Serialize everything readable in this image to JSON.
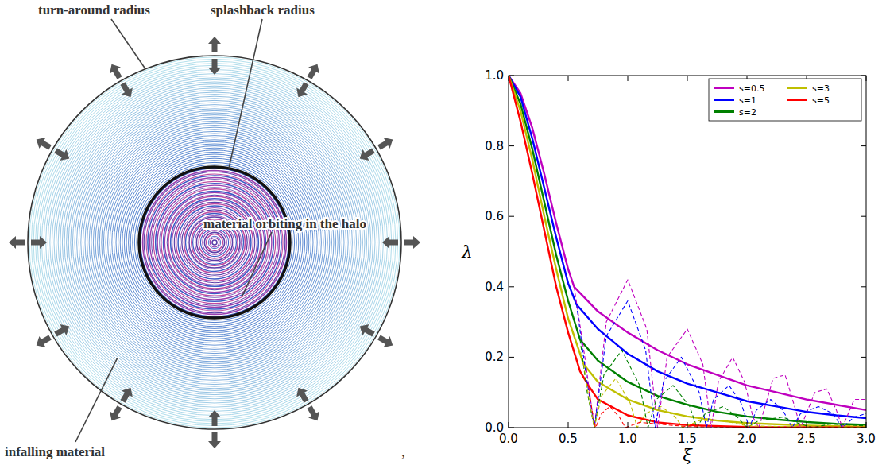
{
  "diagram": {
    "labels": [
      "turn-around radius",
      "splashback radius",
      "material orbiting in the halo",
      "infalling material"
    ],
    "separator": ","
  },
  "chart_data": {
    "type": "line",
    "x_label": "ξ",
    "y_label": "λ",
    "xlim": [
      0,
      3
    ],
    "ylim": [
      0,
      1
    ],
    "xticks": [
      {
        "value": 0,
        "label": "0.0"
      },
      {
        "value": 0.5,
        "label": "0.5"
      },
      {
        "value": 1,
        "label": "1.0"
      },
      {
        "value": 1.5,
        "label": "1.5"
      },
      {
        "value": 2,
        "label": "2.0"
      },
      {
        "value": 2.5,
        "label": "2.5"
      },
      {
        "value": 3,
        "label": "3.0"
      }
    ],
    "yticks": [
      {
        "value": 0,
        "label": "0.0"
      },
      {
        "value": 0.2,
        "label": "0.2"
      },
      {
        "value": 0.4,
        "label": "0.4"
      },
      {
        "value": 0.6,
        "label": "0.6"
      },
      {
        "value": 0.8,
        "label": "0.8"
      },
      {
        "value": 1,
        "label": "1.0"
      }
    ],
    "grid": false,
    "legend": "upper right",
    "series": [
      {
        "name": "s=0.5",
        "color": "#bf00bf",
        "line_style": "solid",
        "x": [
          0,
          0.1,
          0.2,
          0.3,
          0.4,
          0.5,
          0.55,
          0.75,
          1.0,
          1.25,
          1.5,
          1.75,
          2.0,
          2.25,
          2.5,
          2.75,
          3.0
        ],
        "values": [
          1.0,
          0.95,
          0.85,
          0.72,
          0.58,
          0.45,
          0.4,
          0.33,
          0.27,
          0.22,
          0.18,
          0.15,
          0.12,
          0.1,
          0.08,
          0.065,
          0.05
        ]
      },
      {
        "name": "s=1",
        "color": "#0000ff",
        "line_style": "solid",
        "x": [
          0,
          0.1,
          0.2,
          0.3,
          0.4,
          0.5,
          0.57,
          0.75,
          1.0,
          1.25,
          1.5,
          1.75,
          2.0,
          2.25,
          2.5,
          2.75,
          3.0
        ],
        "values": [
          1.0,
          0.94,
          0.82,
          0.68,
          0.54,
          0.41,
          0.35,
          0.28,
          0.21,
          0.16,
          0.125,
          0.1,
          0.075,
          0.06,
          0.045,
          0.035,
          0.027
        ]
      },
      {
        "name": "s=2",
        "color": "#008000",
        "line_style": "solid",
        "x": [
          0,
          0.1,
          0.2,
          0.3,
          0.4,
          0.5,
          0.6,
          0.75,
          1.0,
          1.25,
          1.5,
          1.75,
          2.0,
          2.25,
          2.5,
          2.75,
          3.0
        ],
        "values": [
          1.0,
          0.92,
          0.79,
          0.64,
          0.49,
          0.36,
          0.25,
          0.19,
          0.13,
          0.09,
          0.065,
          0.045,
          0.032,
          0.023,
          0.016,
          0.011,
          0.008
        ]
      },
      {
        "name": "s=3",
        "color": "#bfbf00",
        "line_style": "solid",
        "x": [
          0,
          0.1,
          0.2,
          0.3,
          0.4,
          0.5,
          0.63,
          0.75,
          1.0,
          1.25,
          1.5,
          1.75,
          2.0,
          2.5,
          3.0
        ],
        "values": [
          1.0,
          0.9,
          0.76,
          0.6,
          0.45,
          0.31,
          0.18,
          0.13,
          0.08,
          0.05,
          0.032,
          0.02,
          0.013,
          0.006,
          0.003
        ]
      },
      {
        "name": "s=5",
        "color": "#ff0000",
        "line_style": "solid",
        "x": [
          0,
          0.1,
          0.2,
          0.3,
          0.4,
          0.5,
          0.6,
          0.67,
          0.75,
          1.0,
          1.25,
          1.5,
          2.0,
          3.0
        ],
        "values": [
          1.0,
          0.87,
          0.72,
          0.56,
          0.4,
          0.27,
          0.16,
          0.12,
          0.08,
          0.035,
          0.015,
          0.007,
          0.002,
          0.0
        ]
      },
      {
        "color": "#bf00bf",
        "line_style": "dashed",
        "x": [
          0.55,
          0.64,
          0.72,
          0.82,
          1.0,
          1.16,
          1.25,
          1.33,
          1.5,
          1.63,
          1.7,
          1.76,
          1.88,
          1.98,
          2.05,
          2.1,
          2.22,
          2.32,
          2.4,
          2.45,
          2.57,
          2.67,
          2.75,
          2.8,
          2.9,
          3.0
        ],
        "values": [
          0.4,
          0.2,
          0,
          0.3,
          0.42,
          0.28,
          0,
          0.2,
          0.28,
          0.18,
          0,
          0.13,
          0.2,
          0.13,
          0.03,
          0,
          0.14,
          0.15,
          0.06,
          0,
          0.1,
          0.11,
          0.05,
          0,
          0.08,
          0.08
        ]
      },
      {
        "color": "#0000ff",
        "line_style": "dashed",
        "x": [
          0.57,
          0.65,
          0.72,
          0.82,
          1.0,
          1.15,
          1.23,
          1.3,
          1.45,
          1.6,
          1.66,
          1.72,
          1.85,
          1.95,
          2.02,
          2.08,
          2.2,
          2.3,
          2.38,
          2.45,
          2.6,
          2.72,
          2.8,
          2.9,
          3.0
        ],
        "values": [
          0.35,
          0.15,
          0,
          0.26,
          0.36,
          0.22,
          0,
          0.13,
          0.2,
          0.1,
          0,
          0.08,
          0.12,
          0.07,
          0,
          0.05,
          0.08,
          0.05,
          0,
          0.04,
          0.06,
          0.04,
          0,
          0.03,
          0.04
        ]
      },
      {
        "color": "#008000",
        "line_style": "dashed",
        "x": [
          0.6,
          0.66,
          0.72,
          0.8,
          0.95,
          1.1,
          1.17,
          1.24,
          1.38,
          1.52,
          1.58,
          1.65,
          1.8,
          1.92,
          2.0,
          2.1,
          2.3,
          2.45,
          2.55,
          2.7,
          3.0
        ],
        "values": [
          0.25,
          0.1,
          0,
          0.15,
          0.22,
          0.12,
          0,
          0.08,
          0.12,
          0.06,
          0,
          0.04,
          0.06,
          0.03,
          0,
          0.02,
          0.03,
          0.01,
          0,
          0.01,
          0.005
        ]
      },
      {
        "color": "#bfbf00",
        "line_style": "dashed",
        "x": [
          0.63,
          0.68,
          0.72,
          0.78,
          0.9,
          1.02,
          1.08,
          1.15,
          1.28,
          1.4,
          1.46,
          1.6,
          1.8,
          2.0,
          2.5,
          3.0
        ],
        "values": [
          0.18,
          0.07,
          0,
          0.09,
          0.14,
          0.07,
          0,
          0.04,
          0.06,
          0.03,
          0,
          0.02,
          0.02,
          0.005,
          0.002,
          0.001
        ]
      },
      {
        "color": "#ff0000",
        "line_style": "dashed",
        "x": [
          0.67,
          0.7,
          0.73,
          0.78,
          0.85,
          0.93,
          0.98,
          1.1,
          1.25,
          1.5,
          2.0,
          3.0
        ],
        "values": [
          0.12,
          0.05,
          0,
          0.04,
          0.06,
          0.03,
          0,
          0.015,
          0.01,
          0.003,
          0.001,
          0
        ]
      }
    ]
  }
}
